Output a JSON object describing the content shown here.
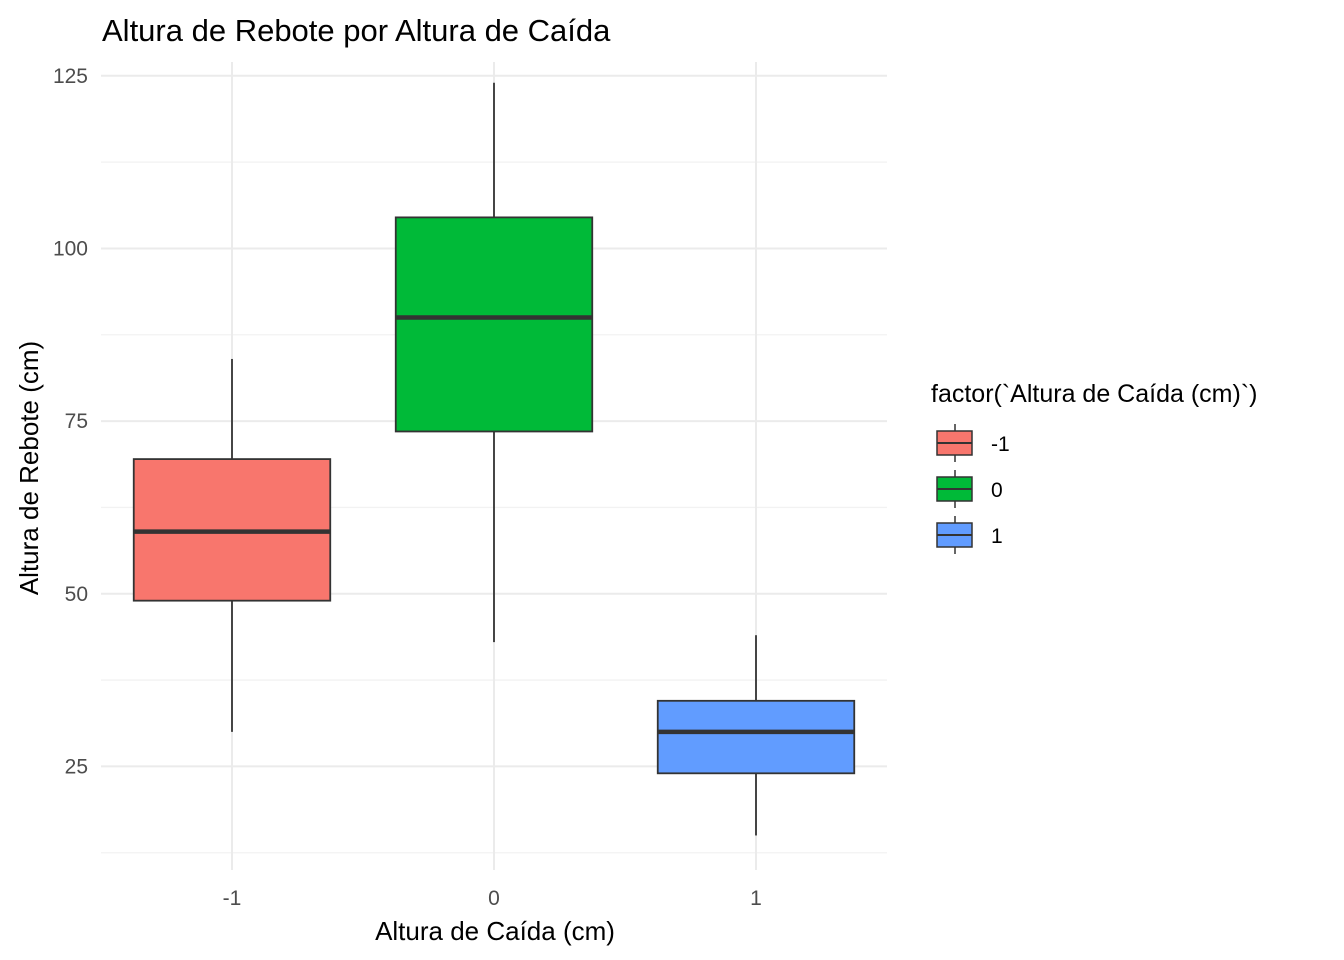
{
  "chart_data": {
    "type": "boxplot",
    "title": "Altura de Rebote por Altura de Caída",
    "xlabel": "Altura de Caída (cm)",
    "ylabel": "Altura de Rebote (cm)",
    "categories": [
      "-1",
      "0",
      "1"
    ],
    "ylim": [
      10,
      127
    ],
    "yticks": [
      25,
      50,
      75,
      100,
      125
    ],
    "grid": true,
    "boxes": [
      {
        "category": "-1",
        "min": 30,
        "q1": 49,
        "median": 59,
        "q3": 69.5,
        "max": 84,
        "color": "#F8766D"
      },
      {
        "category": "0",
        "min": 43,
        "q1": 73.5,
        "median": 90,
        "q3": 104.5,
        "max": 124,
        "color": "#00BA38"
      },
      {
        "category": "1",
        "min": 15,
        "q1": 24,
        "median": 30,
        "q3": 34.5,
        "max": 44,
        "color": "#619CFF"
      }
    ],
    "legend": {
      "title": "factor(`Altura de Caída (cm)`)",
      "position": "right",
      "items": [
        {
          "label": "-1",
          "color": "#F8766D"
        },
        {
          "label": "0",
          "color": "#00BA38"
        },
        {
          "label": "1",
          "color": "#619CFF"
        }
      ]
    }
  }
}
